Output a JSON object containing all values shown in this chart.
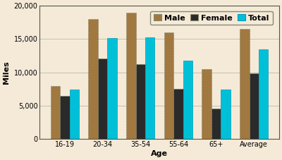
{
  "categories": [
    "16-19",
    "20-34",
    "35-54",
    "55-64",
    "65+",
    "Average"
  ],
  "male": [
    8000,
    18000,
    19000,
    16000,
    10500,
    16500
  ],
  "female": [
    6500,
    12100,
    11200,
    7500,
    4600,
    9900
  ],
  "total": [
    7400,
    15200,
    15300,
    11800,
    7400,
    13500
  ],
  "male_color": "#a07840",
  "female_color": "#2a2a2a",
  "total_color": "#00c0d8",
  "bg_color": "#f5ead8",
  "plot_bg_color": "#f5ead8",
  "outer_bg_color": "#f0e0c0",
  "ylabel": "Miles",
  "xlabel": "Age",
  "ylim": [
    0,
    20000
  ],
  "yticks": [
    0,
    5000,
    10000,
    15000,
    20000
  ],
  "ytick_labels": [
    "0",
    "5,000",
    "10,000",
    "15,000",
    "20,000"
  ],
  "legend_labels": [
    "Male",
    "Female",
    "Total"
  ],
  "bar_width": 0.25,
  "label_fontsize": 8,
  "tick_fontsize": 7,
  "legend_fontsize": 8
}
